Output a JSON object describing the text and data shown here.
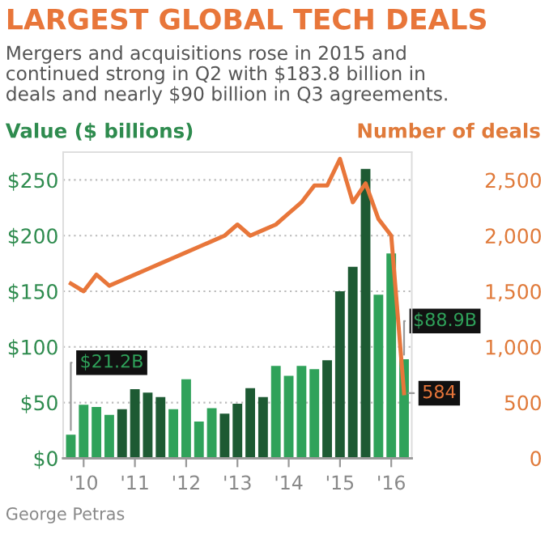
{
  "chart_data": {
    "type": "bar",
    "title": "LARGEST GLOBAL TECH DEALS",
    "subtitle": "Mergers and acquisitions rose in 2015 and\ncontinued strong in Q2 with $183.8 billion in\ndeals and nearly $90 billion in Q3 agreements.",
    "ylabel": "Value ($ billions)",
    "y2label": "Number of deals",
    "categories": [
      null,
      "'10",
      null,
      null,
      null,
      "'11",
      null,
      null,
      null,
      "'12",
      null,
      null,
      null,
      "'13",
      null,
      null,
      null,
      "'14",
      null,
      null,
      null,
      "'15",
      null,
      null,
      null,
      "'16",
      null
    ],
    "series": [
      {
        "colors": [
          "#2fa25a",
          "#2fa25a",
          "#2fa25a",
          "#2fa25a",
          "#1d5a33",
          "#1d5a33",
          "#1d5a33",
          "#1d5a33",
          "#2fa25a",
          "#2fa25a",
          "#2fa25a",
          "#2fa25a",
          "#1d5a33",
          "#1d5a33",
          "#1d5a33",
          "#1d5a33",
          "#2fa25a",
          "#2fa25a",
          "#2fa25a",
          "#2fa25a",
          "#1d5a33",
          "#1d5a33",
          "#1d5a33",
          "#1d5a33",
          "#2fa25a",
          "#2fa25a",
          "#2fa25a"
        ],
        "color": "#2fa25a",
        "values": [
          21.2,
          48,
          46,
          39,
          44,
          62,
          59,
          55,
          44,
          71,
          33,
          45,
          40,
          49,
          63,
          55,
          83,
          74,
          83,
          80,
          88,
          150,
          172,
          260,
          147,
          184,
          88.9
        ],
        "value_labels": [
          "$21.2B",
          null,
          null,
          null,
          null,
          null,
          null,
          null,
          null,
          null,
          null,
          null,
          null,
          null,
          null,
          null,
          null,
          null,
          null,
          null,
          null,
          null,
          null,
          null,
          null,
          null,
          "$88.9B"
        ]
      },
      {
        "type": "line",
        "axis": "y2",
        "color": "#e8763a",
        "values": [
          1570,
          1500,
          1650,
          1550,
          1600,
          1650,
          1700,
          1750,
          1800,
          1850,
          1900,
          1950,
          2000,
          2100,
          2000,
          2050,
          2100,
          2200,
          2300,
          2450,
          2450,
          2690,
          2300,
          2470,
          2150,
          2000,
          584
        ],
        "value_labels": [
          null,
          null,
          null,
          null,
          null,
          null,
          null,
          null,
          null,
          null,
          null,
          null,
          null,
          null,
          null,
          null,
          null,
          null,
          null,
          null,
          null,
          null,
          null,
          null,
          null,
          null,
          "584"
        ]
      }
    ],
    "ylim": [
      0,
      275
    ],
    "yticks": [
      {
        "value": 0,
        "label": "$0"
      },
      {
        "value": 50,
        "label": "$50"
      },
      {
        "value": 100,
        "label": "$100"
      },
      {
        "value": 150,
        "label": "$150"
      },
      {
        "value": 200,
        "label": "$200"
      },
      {
        "value": 250,
        "label": "$250"
      }
    ],
    "y2lim": [
      0,
      2750
    ],
    "y2ticks": [
      0,
      500,
      {
        "value": 1000,
        "label": "1,000"
      },
      {
        "value": 1500,
        "label": "1,500"
      },
      {
        "value": 2000,
        "label": "2,000"
      },
      {
        "value": 2500,
        "label": "2,500"
      }
    ],
    "grid": "y",
    "annotations": [
      "George Petras"
    ]
  }
}
